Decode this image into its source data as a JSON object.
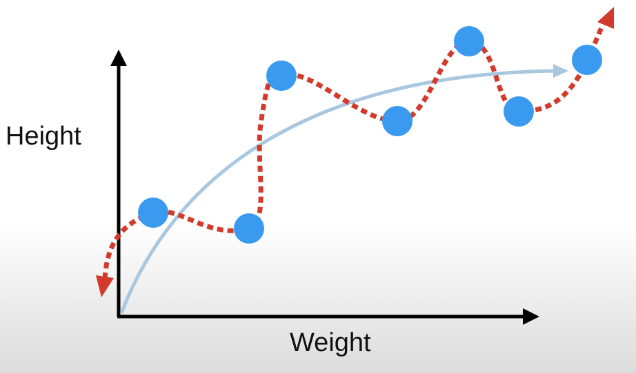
{
  "labels": {
    "y_axis": "Height",
    "x_axis": "Weight"
  }
}
